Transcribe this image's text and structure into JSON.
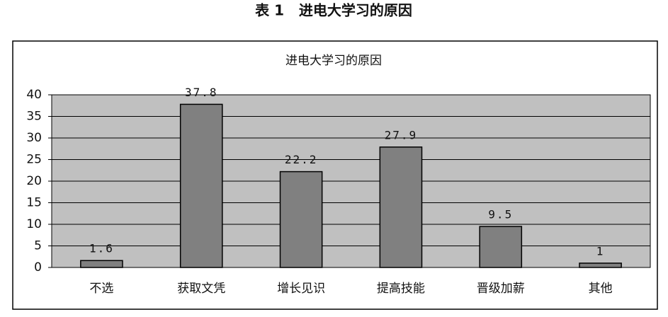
{
  "chart_data": {
    "type": "bar",
    "caption": "表 1   进电大学习的原因",
    "title": "进电大学习的原因",
    "categories": [
      "不选",
      "获取文凭",
      "增长见识",
      "提高技能",
      "晋级加薪",
      "其他"
    ],
    "values": [
      1.6,
      37.8,
      22.2,
      27.9,
      9.5,
      1
    ],
    "color": "#808080",
    "plot_background": "#c0c0c0",
    "ylim": [
      0,
      40
    ],
    "yticks": [
      0,
      5,
      10,
      15,
      20,
      25,
      30,
      35,
      40
    ],
    "grid": true
  }
}
